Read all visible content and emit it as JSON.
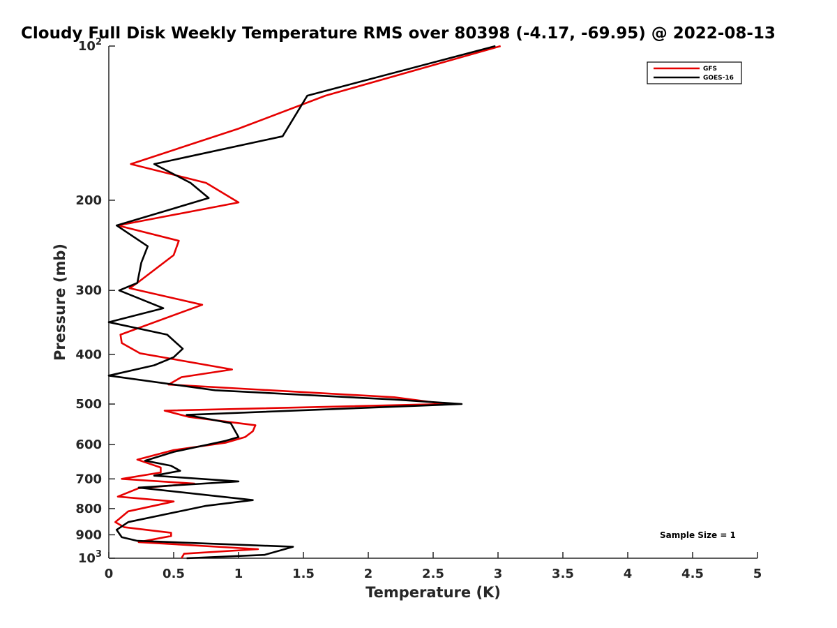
{
  "chart_data": {
    "type": "line",
    "title": "Cloudy Full Disk Weekly Temperature RMS over 80398 (-4.17, -69.95) @ 2022-08-13",
    "xlabel": "Temperature (K)",
    "ylabel": "Pressure (mb)",
    "xlim": [
      0,
      5
    ],
    "ylim": [
      100,
      1000
    ],
    "yscale": "log",
    "yreversed": true,
    "grid": false,
    "legend_position": "top-right",
    "xticks": [
      0,
      0.5,
      1,
      1.5,
      2,
      2.5,
      3,
      3.5,
      4,
      4.5,
      5
    ],
    "xtick_labels": [
      "0",
      "0.5",
      "1",
      "1.5",
      "2",
      "2.5",
      "3",
      "3.5",
      "4",
      "4.5",
      "5"
    ],
    "yticks": [
      100,
      200,
      300,
      400,
      500,
      600,
      700,
      800,
      900,
      1000
    ],
    "ytick_labels": [
      {
        "base": "10",
        "exp": "2"
      },
      {
        "base": "200",
        "exp": ""
      },
      {
        "base": "300",
        "exp": ""
      },
      {
        "base": "400",
        "exp": ""
      },
      {
        "base": "500",
        "exp": ""
      },
      {
        "base": "600",
        "exp": ""
      },
      {
        "base": "700",
        "exp": ""
      },
      {
        "base": "800",
        "exp": ""
      },
      {
        "base": "900",
        "exp": ""
      },
      {
        "base": "10",
        "exp": "3"
      }
    ],
    "annotation": "Sample Size = 1",
    "series": [
      {
        "name": "GFS",
        "color": "#e60000",
        "points": [
          [
            3.02,
            100
          ],
          [
            1.67,
            125
          ],
          [
            1.0,
            145
          ],
          [
            0.17,
            170
          ],
          [
            0.75,
            185
          ],
          [
            1.0,
            202
          ],
          [
            0.07,
            224
          ],
          [
            0.54,
            240
          ],
          [
            0.5,
            256
          ],
          [
            0.22,
            290
          ],
          [
            0.16,
            297
          ],
          [
            0.72,
            320
          ],
          [
            0.09,
            366
          ],
          [
            0.1,
            380
          ],
          [
            0.24,
            398
          ],
          [
            0.95,
            428
          ],
          [
            0.56,
            443
          ],
          [
            0.46,
            458
          ],
          [
            2.2,
            485
          ],
          [
            2.6,
            500
          ],
          [
            0.43,
            515
          ],
          [
            0.62,
            530
          ],
          [
            1.13,
            550
          ],
          [
            1.11,
            565
          ],
          [
            1.05,
            580
          ],
          [
            0.9,
            595
          ],
          [
            0.5,
            615
          ],
          [
            0.22,
            642
          ],
          [
            0.4,
            665
          ],
          [
            0.4,
            680
          ],
          [
            0.1,
            700
          ],
          [
            0.66,
            715
          ],
          [
            0.23,
            730
          ],
          [
            0.07,
            758
          ],
          [
            0.5,
            775
          ],
          [
            0.15,
            810
          ],
          [
            0.05,
            850
          ],
          [
            0.12,
            870
          ],
          [
            0.48,
            892
          ],
          [
            0.48,
            905
          ],
          [
            0.23,
            930
          ],
          [
            1.15,
            960
          ],
          [
            0.58,
            980
          ],
          [
            0.56,
            1000
          ]
        ]
      },
      {
        "name": "GOES-16",
        "color": "#000000",
        "points": [
          [
            2.98,
            100
          ],
          [
            1.53,
            125
          ],
          [
            1.34,
            150
          ],
          [
            0.35,
            170
          ],
          [
            0.63,
            185
          ],
          [
            0.77,
            198
          ],
          [
            0.06,
            224
          ],
          [
            0.3,
            246
          ],
          [
            0.25,
            265
          ],
          [
            0.22,
            290
          ],
          [
            0.08,
            300
          ],
          [
            0.42,
            325
          ],
          [
            0.0,
            346
          ],
          [
            0.45,
            366
          ],
          [
            0.57,
            390
          ],
          [
            0.5,
            405
          ],
          [
            0.35,
            420
          ],
          [
            0.0,
            440
          ],
          [
            0.82,
            470
          ],
          [
            2.2,
            490
          ],
          [
            2.72,
            500
          ],
          [
            0.6,
            525
          ],
          [
            0.94,
            545
          ],
          [
            1.0,
            580
          ],
          [
            0.9,
            590
          ],
          [
            0.5,
            620
          ],
          [
            0.28,
            645
          ],
          [
            0.48,
            660
          ],
          [
            0.55,
            675
          ],
          [
            0.35,
            690
          ],
          [
            1.0,
            708
          ],
          [
            0.23,
            728
          ],
          [
            1.11,
            770
          ],
          [
            0.75,
            790
          ],
          [
            0.15,
            850
          ],
          [
            0.06,
            880
          ],
          [
            0.1,
            910
          ],
          [
            0.22,
            925
          ],
          [
            1.42,
            950
          ],
          [
            1.2,
            985
          ],
          [
            0.6,
            1000
          ]
        ]
      }
    ]
  }
}
